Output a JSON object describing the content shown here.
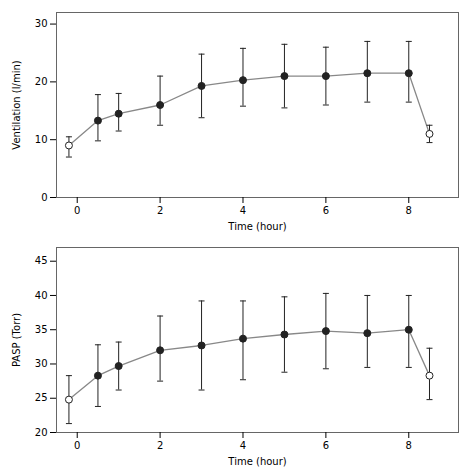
{
  "chart_data": [
    {
      "type": "line",
      "xlabel": "Time (hour)",
      "ylabel": "Ventilation (l/min)",
      "xlim": [
        -0.5,
        9.2
      ],
      "xticks": [
        0,
        2,
        4,
        6,
        8
      ],
      "ylim": [
        0,
        32
      ],
      "yticks": [
        0,
        10,
        20,
        30
      ],
      "grid": false,
      "series": [
        {
          "type": "line",
          "color": "#888888",
          "x": [
            -0.2,
            0.5,
            1.0,
            2.0,
            3.0,
            4.0,
            5.0,
            6.0,
            7.0,
            8.0,
            8.5
          ],
          "values": [
            9.0,
            13.3,
            14.5,
            16.0,
            19.3,
            20.3,
            21.0,
            21.0,
            21.5,
            21.5,
            11.0
          ]
        },
        {
          "type": "scatter",
          "marker": "circle",
          "color": "#222222",
          "x": [
            0.5,
            1.0,
            2.0,
            3.0,
            4.0,
            5.0,
            6.0,
            7.0,
            8.0
          ],
          "values": [
            13.3,
            14.5,
            16.0,
            19.3,
            20.3,
            21.0,
            21.0,
            21.5,
            21.5
          ],
          "error_lo": [
            3.5,
            3.0,
            3.5,
            5.5,
            4.5,
            5.5,
            5.0,
            5.0,
            5.0
          ],
          "error_hi": [
            4.5,
            3.5,
            5.0,
            5.5,
            5.5,
            5.5,
            5.0,
            5.5,
            5.5
          ]
        },
        {
          "type": "scatter",
          "marker": "open_circle",
          "color": "#222222",
          "x": [
            -0.2,
            8.5
          ],
          "values": [
            9.0,
            11.0
          ],
          "error_lo": [
            2.0,
            1.5
          ],
          "error_hi": [
            1.5,
            1.5
          ]
        }
      ]
    },
    {
      "type": "line",
      "xlabel": "Time (hour)",
      "ylabel": "PASP (Torr)",
      "xlim": [
        -0.5,
        9.2
      ],
      "xticks": [
        0,
        2,
        4,
        6,
        8
      ],
      "ylim": [
        20,
        47
      ],
      "yticks": [
        20,
        25,
        30,
        35,
        40,
        45
      ],
      "grid": false,
      "series": [
        {
          "type": "line",
          "color": "#888888",
          "x": [
            -0.2,
            0.5,
            1.0,
            2.0,
            3.0,
            4.0,
            5.0,
            6.0,
            7.0,
            8.0,
            8.5
          ],
          "values": [
            24.8,
            28.3,
            29.7,
            32.0,
            32.7,
            33.7,
            34.3,
            34.8,
            34.5,
            35.0,
            28.3
          ]
        },
        {
          "type": "scatter",
          "marker": "circle",
          "color": "#222222",
          "x": [
            0.5,
            1.0,
            2.0,
            3.0,
            4.0,
            5.0,
            6.0,
            7.0,
            8.0
          ],
          "values": [
            28.3,
            29.7,
            32.0,
            32.7,
            33.7,
            34.3,
            34.8,
            34.5,
            35.0
          ],
          "error_lo": [
            4.5,
            3.5,
            4.5,
            6.5,
            6.0,
            5.5,
            5.5,
            5.0,
            5.5
          ],
          "error_hi": [
            4.5,
            3.5,
            5.0,
            6.5,
            5.5,
            5.5,
            5.5,
            5.5,
            5.0
          ]
        },
        {
          "type": "scatter",
          "marker": "open_circle",
          "color": "#222222",
          "x": [
            -0.2,
            8.5
          ],
          "values": [
            24.8,
            28.3
          ],
          "error_lo": [
            3.5,
            3.5
          ],
          "error_hi": [
            3.5,
            4.0
          ]
        }
      ]
    }
  ]
}
